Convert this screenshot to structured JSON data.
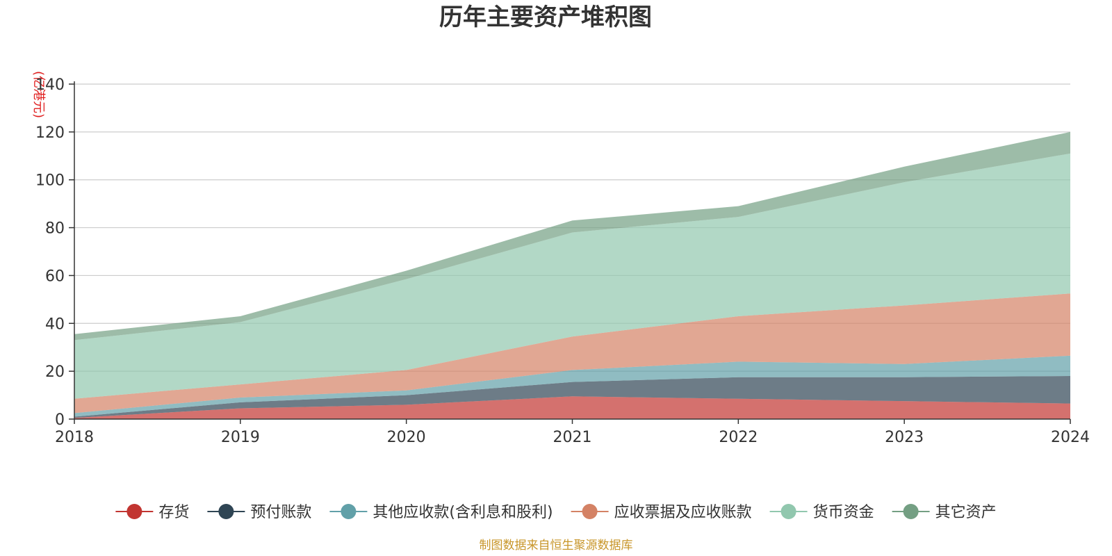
{
  "chart_data": {
    "type": "area",
    "stacked": true,
    "title": "历年主要资产堆积图",
    "ylabel": "(亿港元)",
    "xlabel": "",
    "x": [
      "2018",
      "2019",
      "2020",
      "2021",
      "2022",
      "2023",
      "2024"
    ],
    "ylim": [
      0,
      140
    ],
    "yticks": [
      0,
      20,
      40,
      60,
      80,
      100,
      120,
      140
    ],
    "grid": true,
    "legend_position": "bottom",
    "series": [
      {
        "name": "存货",
        "color": "#c23531",
        "values": [
          0.5,
          4.5,
          6.0,
          9.5,
          8.5,
          7.5,
          6.5
        ]
      },
      {
        "name": "预付账款",
        "color": "#2f4554",
        "values": [
          0.5,
          2.5,
          4.0,
          6.0,
          9.0,
          10.0,
          11.5
        ]
      },
      {
        "name": "其他应收款(含利息和股利)",
        "color": "#61a0a8",
        "values": [
          1.5,
          2.0,
          2.0,
          5.0,
          6.5,
          5.5,
          8.5
        ]
      },
      {
        "name": "应收票据及应收账款",
        "color": "#d48265",
        "values": [
          6.0,
          5.5,
          8.5,
          14.0,
          19.0,
          24.5,
          26.0
        ]
      },
      {
        "name": "货币资金",
        "color": "#91c7ae",
        "values": [
          24.5,
          26.0,
          38.0,
          43.5,
          41.5,
          51.5,
          58.5
        ]
      },
      {
        "name": "其它资产",
        "color": "#749f83",
        "values": [
          2.5,
          2.5,
          3.5,
          5.0,
          4.5,
          6.5,
          9.0
        ]
      }
    ]
  },
  "source_text": "制图数据来自恒生聚源数据库"
}
